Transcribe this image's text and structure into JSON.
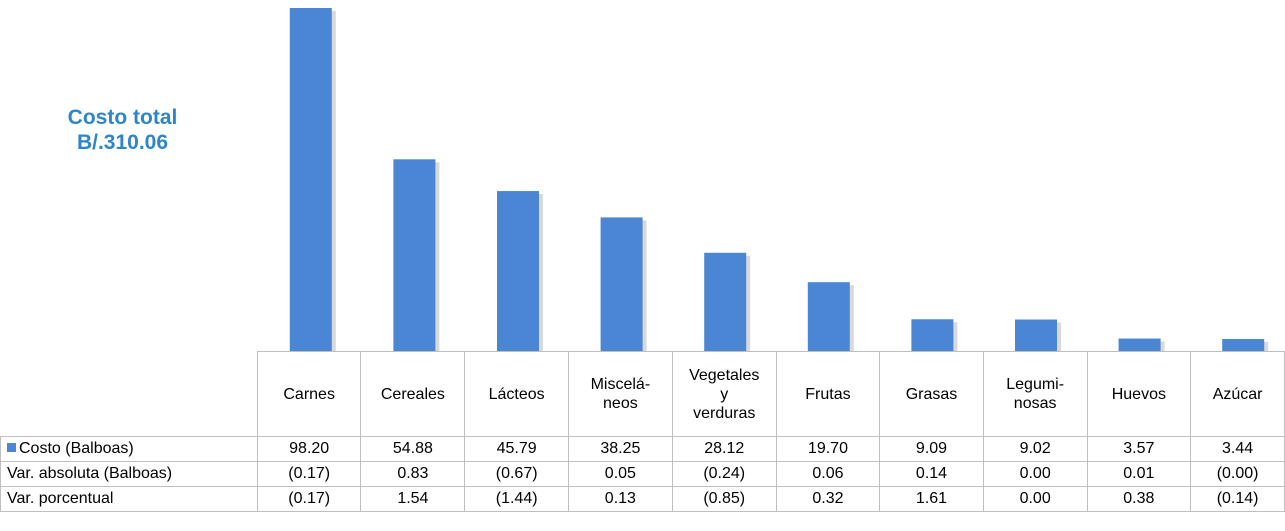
{
  "annotation": {
    "line1": "Costo total",
    "line2": "B/.310.06"
  },
  "colors": {
    "bar": "#4a86d4",
    "bar_shadow": "#d9d9d9",
    "annotation": "#2e86c9",
    "grid": "#bfbfbf"
  },
  "chart_data": {
    "type": "bar",
    "categories": [
      "Carnes",
      "Cereales",
      "Lácteos",
      "Miscelá-\nneos",
      "Vegetales\ny\nverduras",
      "Frutas",
      "Grasas",
      "Legumi-\nnosas",
      "Huevos",
      "Azúcar"
    ],
    "series": [
      {
        "name": "Costo (Balboas)",
        "values": [
          98.2,
          54.88,
          45.79,
          38.25,
          28.12,
          19.7,
          9.09,
          9.02,
          3.57,
          3.44
        ]
      }
    ],
    "ylim": [
      0,
      100
    ],
    "title": "",
    "xlabel": "",
    "ylabel": "",
    "legend": "data table",
    "table_rows": [
      {
        "label": "Costo (Balboas)",
        "legend_key": true,
        "cells": [
          "98.20",
          "54.88",
          "45.79",
          "38.25",
          "28.12",
          "19.70",
          "9.09",
          "9.02",
          "3.57",
          "3.44"
        ]
      },
      {
        "label": "Var. absoluta (Balboas)",
        "legend_key": false,
        "cells": [
          "(0.17)",
          "0.83",
          "(0.67)",
          "0.05",
          "(0.24)",
          "0.06",
          "0.14",
          "0.00",
          "0.01",
          "(0.00)"
        ]
      },
      {
        "label": "Var. porcentual",
        "legend_key": false,
        "cells": [
          "(0.17)",
          "1.54",
          "(1.44)",
          "0.13",
          "(0.85)",
          "0.32",
          "1.61",
          "0.00",
          "0.38",
          "(0.14)"
        ]
      }
    ]
  }
}
